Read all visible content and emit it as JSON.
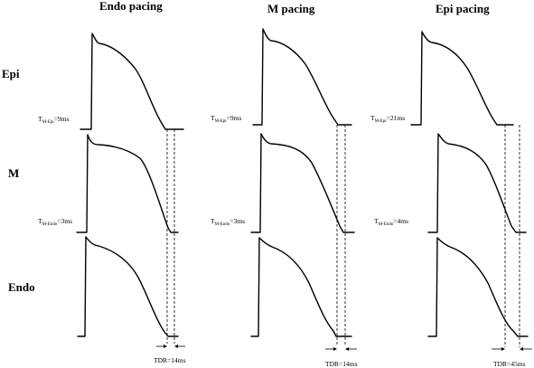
{
  "columns": [
    {
      "title": "Endo pacing",
      "t_labels": [
        {
          "main": "T",
          "sub": "M-Epi",
          "value": "=9ms"
        },
        {
          "main": "T",
          "sub": "M-Endo",
          "value": "=3ms"
        }
      ],
      "tdr": "TDR=14ms"
    },
    {
      "title": "M pacing",
      "t_labels": [
        {
          "main": "T",
          "sub": "M-Epi",
          "value": "=9ms"
        },
        {
          "main": "T",
          "sub": "M-Endo",
          "value": "=3ms"
        }
      ],
      "tdr": "TDR=14ms"
    },
    {
      "title": "Epi pacing",
      "t_labels": [
        {
          "main": "T",
          "sub": "M-Epi",
          "value": "=21ms"
        },
        {
          "main": "T",
          "sub": "M-Endo",
          "value": "=4ms"
        }
      ],
      "tdr": "TDR=45ms"
    }
  ],
  "rows": [
    {
      "label": "Epi"
    },
    {
      "label": "M"
    },
    {
      "label": "Endo"
    }
  ],
  "chart_data": {
    "type": "line",
    "title": "",
    "panels": [
      {
        "column": "Endo pacing",
        "T_M_Epi_ms": 9,
        "T_M_Endo_ms": 3,
        "TDR_ms": 14
      },
      {
        "column": "M pacing",
        "T_M_Epi_ms": 9,
        "T_M_Endo_ms": 3,
        "TDR_ms": 14
      },
      {
        "column": "Epi pacing",
        "T_M_Epi_ms": 21,
        "T_M_Endo_ms": 4,
        "TDR_ms": 45
      }
    ]
  }
}
